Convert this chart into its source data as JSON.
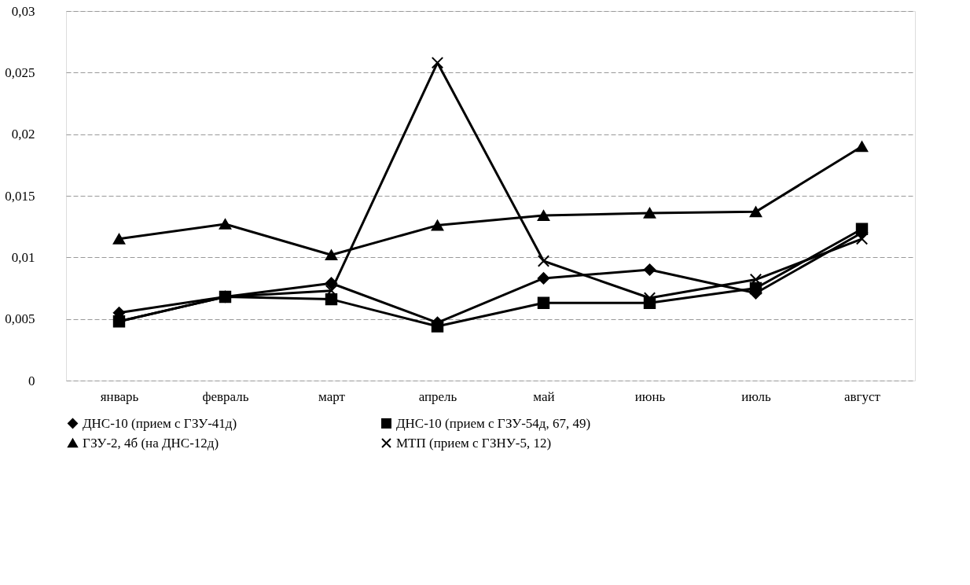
{
  "chart_data": {
    "type": "line",
    "categories": [
      "январь",
      "февраль",
      "март",
      "апрель",
      "май",
      "июнь",
      "июль",
      "август"
    ],
    "series": [
      {
        "name": "ДНС-10 (прием с ГЗУ-41д)",
        "color": "#000000",
        "marker": "diamond",
        "values": [
          0.0055,
          0.0068,
          0.0079,
          0.0047,
          0.0083,
          0.009,
          0.0071,
          0.012
        ]
      },
      {
        "name": "ДНС-10 (прием с ГЗУ-54д, 67, 49)",
        "color": "#000000",
        "marker": "square",
        "values": [
          0.0048,
          0.0068,
          0.0066,
          0.0044,
          0.0063,
          0.0063,
          0.0075,
          0.0123
        ]
      },
      {
        "name": "ГЗУ-2, 4б (на ДНС-12д)",
        "color": "#000000",
        "marker": "triangle",
        "values": [
          0.0115,
          0.0127,
          0.0102,
          0.0126,
          0.0134,
          0.0136,
          0.0137,
          0.019
        ]
      },
      {
        "name": "МТП (прием с ГЗНУ-5, 12)",
        "color": "#000000",
        "marker": "cross",
        "values": [
          0.0048,
          0.0068,
          0.0073,
          0.0258,
          0.0097,
          0.0067,
          0.0082,
          0.0115
        ]
      }
    ],
    "ylim": [
      0,
      0.03
    ],
    "yticks": [
      {
        "value": 0,
        "label": "0"
      },
      {
        "value": 0.005,
        "label": "0,005"
      },
      {
        "value": 0.01,
        "label": "0,01"
      },
      {
        "value": 0.015,
        "label": "0,015"
      },
      {
        "value": 0.02,
        "label": "0,02"
      },
      {
        "value": 0.025,
        "label": "0,025"
      },
      {
        "value": 0.03,
        "label": "0,03"
      }
    ],
    "grid": "y",
    "legend": "bottom",
    "line_style": "solid"
  }
}
